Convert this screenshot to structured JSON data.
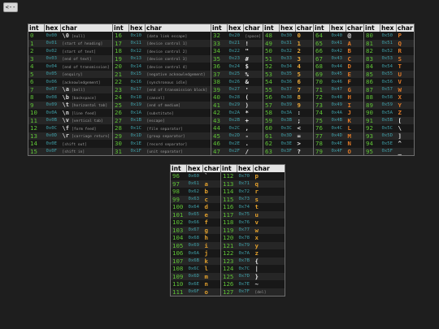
{
  "back_button": "<--",
  "headers": {
    "int": "int",
    "hex": "hex",
    "char": "char"
  },
  "tables": [
    {
      "id": "t0",
      "rows": [
        {
          "int": "0",
          "hex": "0x00",
          "char": "\\0",
          "desc": "[null]"
        },
        {
          "int": "1",
          "hex": "0x01",
          "char": "",
          "desc": "[start of heading]"
        },
        {
          "int": "2",
          "hex": "0x02",
          "char": "",
          "desc": "[start of text]"
        },
        {
          "int": "3",
          "hex": "0x03",
          "char": "",
          "desc": "[end of text]"
        },
        {
          "int": "4",
          "hex": "0x04",
          "char": "",
          "desc": "[end of transmission]"
        },
        {
          "int": "5",
          "hex": "0x05",
          "char": "",
          "desc": "[enquiry]"
        },
        {
          "int": "6",
          "hex": "0x06",
          "char": "",
          "desc": "[acknowledgement]"
        },
        {
          "int": "7",
          "hex": "0x07",
          "char": "\\a",
          "desc": "[bell]"
        },
        {
          "int": "8",
          "hex": "0x08",
          "char": "\\b",
          "desc": "[backspace]"
        },
        {
          "int": "9",
          "hex": "0x09",
          "char": "\\t",
          "desc": "[horizontal tab]"
        },
        {
          "int": "10",
          "hex": "0x0A",
          "char": "\\n",
          "desc": "[line feed]"
        },
        {
          "int": "11",
          "hex": "0x0B",
          "char": "\\v",
          "desc": "[vertical tab]"
        },
        {
          "int": "12",
          "hex": "0x0C",
          "char": "\\f",
          "desc": "[form feed]"
        },
        {
          "int": "13",
          "hex": "0x0D",
          "char": "\\r",
          "desc": "[carriage return]"
        },
        {
          "int": "14",
          "hex": "0x0E",
          "char": "",
          "desc": "[shift out]"
        },
        {
          "int": "15",
          "hex": "0x0F",
          "char": "",
          "desc": "[shift in]"
        }
      ]
    },
    {
      "id": "t1",
      "rows": [
        {
          "int": "16",
          "hex": "0x10",
          "char": "",
          "desc": "[data link escape]"
        },
        {
          "int": "17",
          "hex": "0x11",
          "char": "",
          "desc": "[device control 1]"
        },
        {
          "int": "18",
          "hex": "0x12",
          "char": "",
          "desc": "[device control 2]"
        },
        {
          "int": "19",
          "hex": "0x13",
          "char": "",
          "desc": "[device control 3]"
        },
        {
          "int": "20",
          "hex": "0x14",
          "char": "",
          "desc": "[device control 4]"
        },
        {
          "int": "21",
          "hex": "0x15",
          "char": "",
          "desc": "[negative acknowledgement]"
        },
        {
          "int": "22",
          "hex": "0x16",
          "char": "",
          "desc": "[synchronous idle]"
        },
        {
          "int": "23",
          "hex": "0x17",
          "char": "",
          "desc": "[end of transmission block]"
        },
        {
          "int": "24",
          "hex": "0x18",
          "char": "",
          "desc": "[cancel]"
        },
        {
          "int": "25",
          "hex": "0x19",
          "char": "",
          "desc": "[end of medium]"
        },
        {
          "int": "26",
          "hex": "0x1A",
          "char": "",
          "desc": "[substitute]"
        },
        {
          "int": "27",
          "hex": "0x1B",
          "char": "",
          "desc": "[escape]"
        },
        {
          "int": "28",
          "hex": "0x1C",
          "char": "",
          "desc": "[file separator]"
        },
        {
          "int": "29",
          "hex": "0x1D",
          "char": "",
          "desc": "[group separator]"
        },
        {
          "int": "30",
          "hex": "0x1E",
          "char": "",
          "desc": "[record separator]"
        },
        {
          "int": "31",
          "hex": "0x1F",
          "char": "",
          "desc": "[unit separator]"
        }
      ]
    },
    {
      "id": "t2",
      "rows": [
        {
          "int": "32",
          "hex": "0x20",
          "char": "",
          "desc": "[space]"
        },
        {
          "int": "33",
          "hex": "0x21",
          "char": "!",
          "desc": ""
        },
        {
          "int": "34",
          "hex": "0x22",
          "char": "\"",
          "desc": ""
        },
        {
          "int": "35",
          "hex": "0x23",
          "char": "#",
          "desc": ""
        },
        {
          "int": "36",
          "hex": "0x24",
          "char": "$",
          "desc": ""
        },
        {
          "int": "37",
          "hex": "0x25",
          "char": "%",
          "desc": ""
        },
        {
          "int": "38",
          "hex": "0x26",
          "char": "&",
          "desc": ""
        },
        {
          "int": "39",
          "hex": "0x27",
          "char": "'",
          "desc": ""
        },
        {
          "int": "40",
          "hex": "0x28",
          "char": "(",
          "desc": ""
        },
        {
          "int": "41",
          "hex": "0x29",
          "char": ")",
          "desc": ""
        },
        {
          "int": "42",
          "hex": "0x2A",
          "char": "*",
          "desc": ""
        },
        {
          "int": "43",
          "hex": "0x2B",
          "char": "+",
          "desc": ""
        },
        {
          "int": "44",
          "hex": "0x2C",
          "char": ",",
          "desc": ""
        },
        {
          "int": "45",
          "hex": "0x2D",
          "char": "-",
          "desc": ""
        },
        {
          "int": "46",
          "hex": "0x2E",
          "char": ".",
          "desc": ""
        },
        {
          "int": "47",
          "hex": "0x2F",
          "char": "/",
          "desc": ""
        }
      ]
    },
    {
      "id": "t3",
      "rows": [
        {
          "int": "48",
          "hex": "0x30",
          "char": "0",
          "desc": ""
        },
        {
          "int": "49",
          "hex": "0x31",
          "char": "1",
          "desc": ""
        },
        {
          "int": "50",
          "hex": "0x32",
          "char": "2",
          "desc": ""
        },
        {
          "int": "51",
          "hex": "0x33",
          "char": "3",
          "desc": ""
        },
        {
          "int": "52",
          "hex": "0x34",
          "char": "4",
          "desc": ""
        },
        {
          "int": "53",
          "hex": "0x35",
          "char": "5",
          "desc": ""
        },
        {
          "int": "54",
          "hex": "0x36",
          "char": "6",
          "desc": ""
        },
        {
          "int": "55",
          "hex": "0x37",
          "char": "7",
          "desc": ""
        },
        {
          "int": "56",
          "hex": "0x38",
          "char": "8",
          "desc": ""
        },
        {
          "int": "57",
          "hex": "0x39",
          "char": "9",
          "desc": ""
        },
        {
          "int": "58",
          "hex": "0x3A",
          "char": ":",
          "desc": ""
        },
        {
          "int": "59",
          "hex": "0x3B",
          "char": ";",
          "desc": ""
        },
        {
          "int": "60",
          "hex": "0x3C",
          "char": "<",
          "desc": ""
        },
        {
          "int": "61",
          "hex": "0x3D",
          "char": "=",
          "desc": ""
        },
        {
          "int": "62",
          "hex": "0x3E",
          "char": ">",
          "desc": ""
        },
        {
          "int": "63",
          "hex": "0x3F",
          "char": "?",
          "desc": ""
        }
      ]
    },
    {
      "id": "t4",
      "rows": [
        {
          "int": "64",
          "hex": "0x40",
          "char": "@",
          "desc": ""
        },
        {
          "int": "65",
          "hex": "0x41",
          "char": "A",
          "desc": ""
        },
        {
          "int": "66",
          "hex": "0x42",
          "char": "B",
          "desc": ""
        },
        {
          "int": "67",
          "hex": "0x43",
          "char": "C",
          "desc": ""
        },
        {
          "int": "68",
          "hex": "0x44",
          "char": "D",
          "desc": ""
        },
        {
          "int": "69",
          "hex": "0x45",
          "char": "E",
          "desc": ""
        },
        {
          "int": "70",
          "hex": "0x46",
          "char": "F",
          "desc": ""
        },
        {
          "int": "71",
          "hex": "0x47",
          "char": "G",
          "desc": ""
        },
        {
          "int": "72",
          "hex": "0x48",
          "char": "H",
          "desc": ""
        },
        {
          "int": "73",
          "hex": "0x49",
          "char": "I",
          "desc": ""
        },
        {
          "int": "74",
          "hex": "0x4A",
          "char": "J",
          "desc": ""
        },
        {
          "int": "75",
          "hex": "0x4B",
          "char": "K",
          "desc": ""
        },
        {
          "int": "76",
          "hex": "0x4C",
          "char": "L",
          "desc": ""
        },
        {
          "int": "77",
          "hex": "0x4D",
          "char": "M",
          "desc": ""
        },
        {
          "int": "78",
          "hex": "0x4E",
          "char": "N",
          "desc": ""
        },
        {
          "int": "79",
          "hex": "0x4F",
          "char": "O",
          "desc": ""
        }
      ]
    },
    {
      "id": "t5",
      "rows": [
        {
          "int": "80",
          "hex": "0x50",
          "char": "P",
          "desc": ""
        },
        {
          "int": "81",
          "hex": "0x51",
          "char": "Q",
          "desc": ""
        },
        {
          "int": "82",
          "hex": "0x52",
          "char": "R",
          "desc": ""
        },
        {
          "int": "83",
          "hex": "0x53",
          "char": "S",
          "desc": ""
        },
        {
          "int": "84",
          "hex": "0x54",
          "char": "T",
          "desc": ""
        },
        {
          "int": "85",
          "hex": "0x55",
          "char": "U",
          "desc": ""
        },
        {
          "int": "86",
          "hex": "0x56",
          "char": "V",
          "desc": ""
        },
        {
          "int": "87",
          "hex": "0x57",
          "char": "W",
          "desc": ""
        },
        {
          "int": "88",
          "hex": "0x58",
          "char": "X",
          "desc": ""
        },
        {
          "int": "89",
          "hex": "0x59",
          "char": "Y",
          "desc": ""
        },
        {
          "int": "90",
          "hex": "0x5A",
          "char": "Z",
          "desc": ""
        },
        {
          "int": "91",
          "hex": "0x5B",
          "char": "[",
          "desc": ""
        },
        {
          "int": "92",
          "hex": "0x5C",
          "char": "\\",
          "desc": ""
        },
        {
          "int": "93",
          "hex": "0x5D",
          "char": "]",
          "desc": ""
        },
        {
          "int": "94",
          "hex": "0x5E",
          "char": "^",
          "desc": ""
        },
        {
          "int": "95",
          "hex": "0x5F",
          "char": "_",
          "desc": ""
        }
      ]
    },
    {
      "id": "t6",
      "rows": [
        {
          "int": "96",
          "hex": "0x60",
          "char": "`",
          "desc": ""
        },
        {
          "int": "97",
          "hex": "0x61",
          "char": "a",
          "desc": ""
        },
        {
          "int": "98",
          "hex": "0x62",
          "char": "b",
          "desc": ""
        },
        {
          "int": "99",
          "hex": "0x63",
          "char": "c",
          "desc": ""
        },
        {
          "int": "100",
          "hex": "0x64",
          "char": "d",
          "desc": ""
        },
        {
          "int": "101",
          "hex": "0x65",
          "char": "e",
          "desc": ""
        },
        {
          "int": "102",
          "hex": "0x66",
          "char": "f",
          "desc": ""
        },
        {
          "int": "103",
          "hex": "0x67",
          "char": "g",
          "desc": ""
        },
        {
          "int": "104",
          "hex": "0x68",
          "char": "h",
          "desc": ""
        },
        {
          "int": "105",
          "hex": "0x69",
          "char": "i",
          "desc": ""
        },
        {
          "int": "106",
          "hex": "0x6A",
          "char": "j",
          "desc": ""
        },
        {
          "int": "107",
          "hex": "0x6B",
          "char": "k",
          "desc": ""
        },
        {
          "int": "108",
          "hex": "0x6C",
          "char": "l",
          "desc": ""
        },
        {
          "int": "109",
          "hex": "0x6D",
          "char": "m",
          "desc": ""
        },
        {
          "int": "110",
          "hex": "0x6E",
          "char": "n",
          "desc": ""
        },
        {
          "int": "111",
          "hex": "0x6F",
          "char": "o",
          "desc": ""
        }
      ]
    },
    {
      "id": "t7",
      "rows": [
        {
          "int": "112",
          "hex": "0x70",
          "char": "p",
          "desc": ""
        },
        {
          "int": "113",
          "hex": "0x71",
          "char": "q",
          "desc": ""
        },
        {
          "int": "114",
          "hex": "0x72",
          "char": "r",
          "desc": ""
        },
        {
          "int": "115",
          "hex": "0x73",
          "char": "s",
          "desc": ""
        },
        {
          "int": "116",
          "hex": "0x74",
          "char": "t",
          "desc": ""
        },
        {
          "int": "117",
          "hex": "0x75",
          "char": "u",
          "desc": ""
        },
        {
          "int": "118",
          "hex": "0x76",
          "char": "v",
          "desc": ""
        },
        {
          "int": "119",
          "hex": "0x77",
          "char": "w",
          "desc": ""
        },
        {
          "int": "120",
          "hex": "0x78",
          "char": "x",
          "desc": ""
        },
        {
          "int": "121",
          "hex": "0x79",
          "char": "y",
          "desc": ""
        },
        {
          "int": "122",
          "hex": "0x7A",
          "char": "z",
          "desc": ""
        },
        {
          "int": "123",
          "hex": "0x7B",
          "char": "{",
          "desc": ""
        },
        {
          "int": "124",
          "hex": "0x7C",
          "char": "|",
          "desc": ""
        },
        {
          "int": "125",
          "hex": "0x7D",
          "char": "}",
          "desc": ""
        },
        {
          "int": "126",
          "hex": "0x7E",
          "char": "~",
          "desc": ""
        },
        {
          "int": "127",
          "hex": "0x7F",
          "char": "",
          "desc": "[del]"
        }
      ]
    }
  ]
}
